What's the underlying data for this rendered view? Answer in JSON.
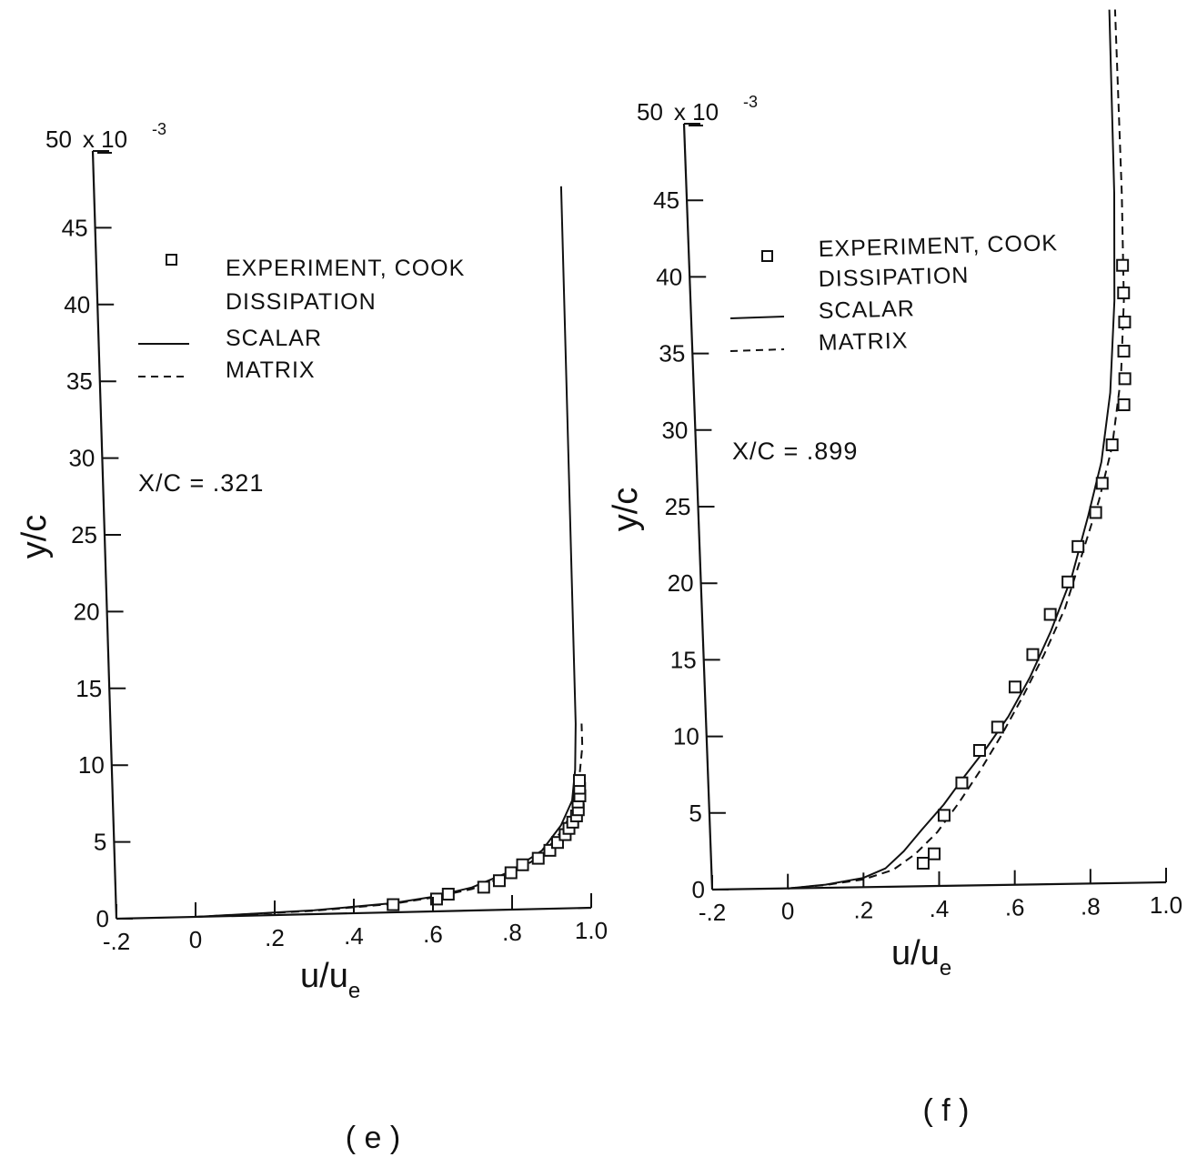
{
  "chart_data": [
    {
      "panel_label": "( e )",
      "type": "line+scatter",
      "xlabel": "u/u",
      "xlabel_sub": "e",
      "ylabel": "y/c",
      "y_scale_label": "x 10",
      "y_scale_exp": "-3",
      "annotation": "X/C = .321",
      "xlim": [
        -0.2,
        1.0
      ],
      "ylim": [
        0,
        50
      ],
      "x_ticks": [
        -0.2,
        0,
        0.2,
        0.4,
        0.6,
        0.8,
        1.0
      ],
      "x_tick_labels": [
        "-.2",
        "0",
        ".2",
        ".4",
        ".6",
        ".8",
        "1.0"
      ],
      "y_ticks": [
        0,
        5,
        10,
        15,
        20,
        25,
        30,
        35,
        40,
        45,
        50
      ],
      "y_tick_labels": [
        "0",
        "5",
        "10",
        "15",
        "20",
        "25",
        "30",
        "35",
        "40",
        "45",
        "50"
      ],
      "legend": {
        "experiment": "EXPERIMENT, COOK",
        "group_title": "DISSIPATION",
        "scalar": "SCALAR",
        "matrix": "MATRIX"
      },
      "series": [
        {
          "name": "SCALAR",
          "style": "solid",
          "x": [
            0.0,
            0.3,
            0.5,
            0.6,
            0.7,
            0.8,
            0.88,
            0.93,
            0.96,
            0.97,
            0.975,
            0.98
          ],
          "y": [
            0.0,
            0.25,
            0.6,
            0.95,
            1.5,
            2.5,
            3.8,
            5.4,
            7.0,
            9.0,
            12,
            47
          ]
        },
        {
          "name": "MATRIX",
          "style": "dashed",
          "x": [
            0.0,
            0.3,
            0.5,
            0.6,
            0.7,
            0.8,
            0.88,
            0.93,
            0.965,
            0.98,
            0.99,
            0.99
          ],
          "y": [
            0.0,
            0.22,
            0.55,
            0.9,
            1.4,
            2.3,
            3.5,
            5.0,
            6.5,
            8.5,
            10.5,
            12
          ]
        },
        {
          "name": "EXPERIMENT, COOK",
          "style": "markers",
          "x": [
            0.5,
            0.61,
            0.64,
            0.73,
            0.77,
            0.8,
            0.83,
            0.87,
            0.9,
            0.92,
            0.94,
            0.95,
            0.96,
            0.97,
            0.975,
            0.975,
            0.98,
            0.98,
            0.98
          ],
          "y": [
            0.5,
            0.8,
            1.1,
            1.5,
            1.9,
            2.4,
            2.9,
            3.3,
            3.8,
            4.3,
            4.8,
            5.2,
            5.6,
            6.0,
            6.4,
            6.9,
            7.3,
            7.8,
            8.3
          ]
        }
      ]
    },
    {
      "panel_label": "( f )",
      "type": "line+scatter",
      "xlabel": "u/u",
      "xlabel_sub": "e",
      "ylabel": "y/c",
      "y_scale_label": "x 10",
      "y_scale_exp": "-3",
      "annotation": "X/C = .899",
      "xlim": [
        -0.2,
        1.0
      ],
      "ylim": [
        0,
        50
      ],
      "x_ticks": [
        -0.2,
        0,
        0.2,
        0.4,
        0.6,
        0.8,
        1.0
      ],
      "x_tick_labels": [
        "-.2",
        "0",
        ".2",
        ".4",
        ".6",
        ".8",
        "1.0"
      ],
      "y_ticks": [
        0,
        5,
        10,
        15,
        20,
        25,
        30,
        35,
        40,
        45,
        50
      ],
      "y_tick_labels": [
        "0",
        "5",
        "10",
        "15",
        "20",
        "25",
        "30",
        "35",
        "40",
        "45",
        "50"
      ],
      "legend": {
        "experiment": "EXPERIMENT, COOK",
        "group_title": "DISSIPATION",
        "scalar": "SCALAR",
        "matrix": "MATRIX"
      },
      "series": [
        {
          "name": "SCALAR",
          "style": "solid",
          "x": [
            0.0,
            0.1,
            0.2,
            0.26,
            0.31,
            0.36,
            0.42,
            0.48,
            0.54,
            0.6,
            0.66,
            0.72,
            0.78,
            0.83,
            0.87,
            0.9,
            0.92,
            0.93,
            0.935
          ],
          "y": [
            0.0,
            0.2,
            0.6,
            1.2,
            2.3,
            3.7,
            5.3,
            7.2,
            9.0,
            11.0,
            13.5,
            16.5,
            20.0,
            24.0,
            27.5,
            32.0,
            38.0,
            45.0,
            57
          ]
        },
        {
          "name": "MATRIX",
          "style": "dashed",
          "x": [
            0.0,
            0.1,
            0.2,
            0.28,
            0.34,
            0.4,
            0.46,
            0.52,
            0.58,
            0.64,
            0.7,
            0.76,
            0.81,
            0.86,
            0.9,
            0.93,
            0.945,
            0.95,
            0.95
          ],
          "y": [
            0.0,
            0.18,
            0.5,
            1.1,
            2.1,
            3.5,
            5.4,
            7.5,
            9.8,
            12.3,
            15.0,
            18.0,
            21.5,
            25.0,
            28.5,
            33.0,
            38.0,
            45.0,
            57
          ]
        },
        {
          "name": "EXPERIMENT, COOK",
          "style": "markers",
          "x": [
            0.36,
            0.39,
            0.42,
            0.47,
            0.52,
            0.57,
            0.62,
            0.67,
            0.72,
            0.77,
            0.8,
            0.85,
            0.87,
            0.9,
            0.935,
            0.94,
            0.94,
            0.945,
            0.945,
            0.945
          ],
          "y": [
            1.5,
            2.1,
            4.6,
            6.7,
            8.8,
            10.3,
            12.9,
            15.0,
            17.6,
            19.7,
            22.0,
            24.2,
            26.1,
            28.6,
            31.2,
            32.9,
            34.7,
            36.6,
            38.5,
            40.3
          ]
        }
      ]
    }
  ]
}
